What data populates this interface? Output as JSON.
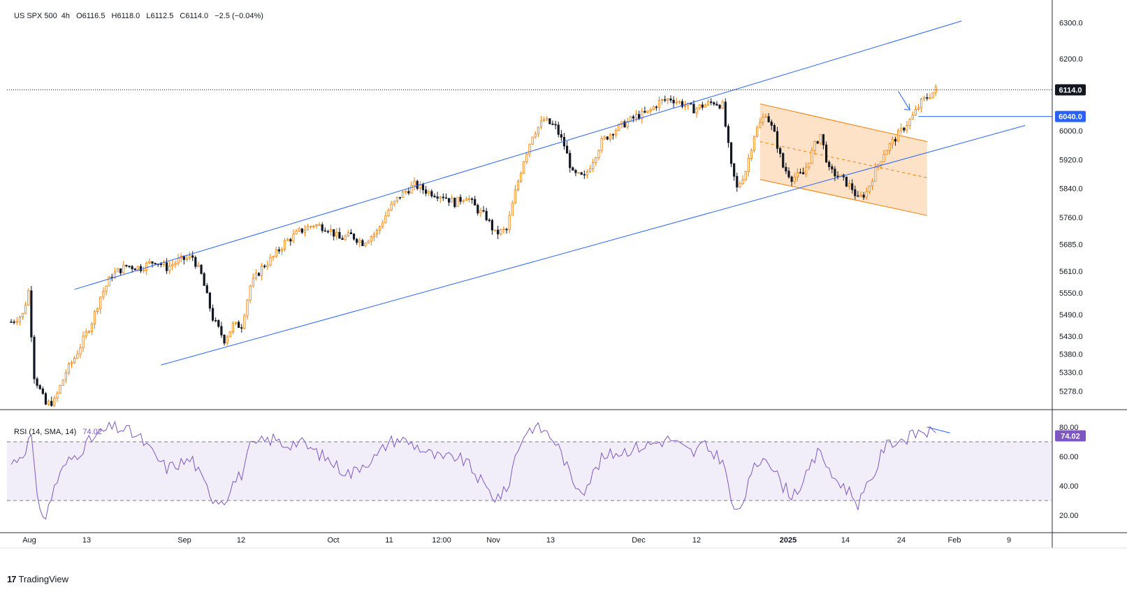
{
  "chart_data": {
    "type": "candlestick",
    "symbol": "US SPX 500",
    "timeframe": "4h",
    "ohlc": {
      "open_label": "O6116.5",
      "high_label": "H6118.0",
      "low_label": "L6112.5",
      "close_label": "C6114.0",
      "change_label": "−2.5 (−0.04%)"
    },
    "price_axis": {
      "min": 5230,
      "max": 6340,
      "ticks": [
        "6300.0",
        "6200.0",
        "6114.0",
        "6040.0",
        "6000.0",
        "5920.0",
        "5840.0",
        "5760.0",
        "5685.0",
        "5610.0",
        "5550.0",
        "5490.0",
        "5430.0",
        "5380.0",
        "5330.0",
        "5278.0"
      ],
      "tick_values": [
        6300,
        6200,
        6114,
        6040,
        6000,
        5920,
        5840,
        5760,
        5685,
        5610,
        5550,
        5490,
        5430,
        5380,
        5330,
        5278
      ]
    },
    "last_price_label": "6114.0",
    "last_price": 6114,
    "level_label": "6040.0",
    "level_price": 6040,
    "time_axis": {
      "labels": [
        "Aug",
        "13",
        "Sep",
        "12",
        "Oct",
        "11",
        "12:00",
        "Nov",
        "13",
        "Dec",
        "12",
        "2025",
        "14",
        "24",
        "Feb",
        "9"
      ],
      "bold": [
        "2025"
      ]
    },
    "price_path": [
      [
        0,
        5470
      ],
      [
        4,
        5490
      ],
      [
        6,
        5555
      ],
      [
        8,
        5320
      ],
      [
        12,
        5240
      ],
      [
        15,
        5250
      ],
      [
        19,
        5330
      ],
      [
        22,
        5370
      ],
      [
        25,
        5420
      ],
      [
        28,
        5470
      ],
      [
        31,
        5540
      ],
      [
        35,
        5600
      ],
      [
        40,
        5625
      ],
      [
        45,
        5620
      ],
      [
        50,
        5640
      ],
      [
        54,
        5620
      ],
      [
        58,
        5640
      ],
      [
        63,
        5650
      ],
      [
        66,
        5600
      ],
      [
        70,
        5480
      ],
      [
        74,
        5420
      ],
      [
        77,
        5460
      ],
      [
        80,
        5460
      ],
      [
        83,
        5570
      ],
      [
        87,
        5620
      ],
      [
        91,
        5650
      ],
      [
        95,
        5690
      ],
      [
        100,
        5720
      ],
      [
        105,
        5740
      ],
      [
        110,
        5730
      ],
      [
        114,
        5700
      ],
      [
        118,
        5710
      ],
      [
        122,
        5690
      ],
      [
        127,
        5720
      ],
      [
        131,
        5780
      ],
      [
        135,
        5820
      ],
      [
        140,
        5850
      ],
      [
        145,
        5830
      ],
      [
        150,
        5820
      ],
      [
        154,
        5800
      ],
      [
        158,
        5820
      ],
      [
        162,
        5780
      ],
      [
        165,
        5760
      ],
      [
        168,
        5715
      ],
      [
        172,
        5725
      ],
      [
        175,
        5830
      ],
      [
        178,
        5920
      ],
      [
        181,
        5990
      ],
      [
        185,
        6030
      ],
      [
        189,
        6010
      ],
      [
        192,
        5960
      ],
      [
        195,
        5880
      ],
      [
        199,
        5870
      ],
      [
        202,
        5920
      ],
      [
        205,
        5970
      ],
      [
        209,
        6000
      ],
      [
        213,
        6020
      ],
      [
        217,
        6040
      ],
      [
        221,
        6050
      ],
      [
        225,
        6080
      ],
      [
        229,
        6090
      ],
      [
        233,
        6075
      ],
      [
        237,
        6060
      ],
      [
        240,
        6070
      ],
      [
        244,
        6080
      ],
      [
        247,
        6070
      ],
      [
        250,
        5900
      ],
      [
        252,
        5840
      ],
      [
        255,
        5890
      ],
      [
        258,
        5990
      ],
      [
        262,
        6050
      ],
      [
        265,
        5990
      ],
      [
        268,
        5900
      ],
      [
        271,
        5870
      ],
      [
        275,
        5880
      ],
      [
        279,
        5960
      ],
      [
        281,
        5990
      ],
      [
        284,
        5890
      ],
      [
        288,
        5870
      ],
      [
        292,
        5840
      ],
      [
        294,
        5810
      ],
      [
        297,
        5830
      ],
      [
        300,
        5890
      ],
      [
        303,
        5940
      ],
      [
        306,
        5970
      ],
      [
        310,
        6010
      ],
      [
        313,
        6040
      ],
      [
        316,
        6080
      ],
      [
        319,
        6100
      ],
      [
        321,
        6114
      ]
    ],
    "trendlines": [
      {
        "name": "upper-channel",
        "p1": [
          22,
          5560
        ],
        "p2": [
          330,
          6305
        ]
      },
      {
        "name": "lower-channel",
        "p1": [
          52,
          5350
        ],
        "p2": [
          352,
          6015
        ]
      }
    ],
    "descending_channel": {
      "top": {
        "p1": [
          260,
          6075
        ],
        "p2": [
          318,
          5970
        ]
      },
      "mid": {
        "p1": [
          260,
          5970
        ],
        "p2": [
          318,
          5870
        ]
      },
      "bottom": {
        "p1": [
          260,
          5865
        ],
        "p2": [
          318,
          5765
        ]
      }
    },
    "rsi": {
      "label": "RSI (14, SMA, 14)",
      "value_label": "74.02",
      "value": 74.02,
      "min": 10,
      "max": 90,
      "upper_band": 70,
      "lower_band": 30,
      "ticks": [
        "80.00",
        "60.00",
        "40.00",
        "20.00"
      ],
      "tick_values": [
        80,
        60,
        40,
        20
      ],
      "path": [
        [
          0,
          55
        ],
        [
          4,
          62
        ],
        [
          7,
          74
        ],
        [
          9,
          30
        ],
        [
          12,
          18
        ],
        [
          15,
          40
        ],
        [
          19,
          55
        ],
        [
          23,
          62
        ],
        [
          27,
          70
        ],
        [
          31,
          76
        ],
        [
          35,
          80
        ],
        [
          40,
          78
        ],
        [
          45,
          72
        ],
        [
          50,
          60
        ],
        [
          54,
          52
        ],
        [
          58,
          55
        ],
        [
          63,
          58
        ],
        [
          66,
          45
        ],
        [
          70,
          32
        ],
        [
          74,
          30
        ],
        [
          77,
          42
        ],
        [
          80,
          48
        ],
        [
          83,
          66
        ],
        [
          87,
          70
        ],
        [
          91,
          72
        ],
        [
          95,
          68
        ],
        [
          100,
          70
        ],
        [
          105,
          64
        ],
        [
          110,
          58
        ],
        [
          114,
          52
        ],
        [
          118,
          48
        ],
        [
          122,
          55
        ],
        [
          127,
          60
        ],
        [
          131,
          70
        ],
        [
          135,
          72
        ],
        [
          140,
          68
        ],
        [
          145,
          62
        ],
        [
          150,
          58
        ],
        [
          154,
          60
        ],
        [
          158,
          56
        ],
        [
          162,
          46
        ],
        [
          165,
          38
        ],
        [
          168,
          32
        ],
        [
          172,
          36
        ],
        [
          175,
          60
        ],
        [
          178,
          75
        ],
        [
          181,
          80
        ],
        [
          185,
          78
        ],
        [
          189,
          70
        ],
        [
          192,
          58
        ],
        [
          195,
          42
        ],
        [
          199,
          38
        ],
        [
          202,
          48
        ],
        [
          205,
          58
        ],
        [
          209,
          62
        ],
        [
          213,
          64
        ],
        [
          217,
          66
        ],
        [
          221,
          68
        ],
        [
          225,
          70
        ],
        [
          229,
          72
        ],
        [
          233,
          66
        ],
        [
          237,
          62
        ],
        [
          240,
          68
        ],
        [
          244,
          62
        ],
        [
          247,
          58
        ],
        [
          250,
          30
        ],
        [
          252,
          20
        ],
        [
          255,
          35
        ],
        [
          258,
          52
        ],
        [
          262,
          62
        ],
        [
          265,
          50
        ],
        [
          268,
          40
        ],
        [
          271,
          34
        ],
        [
          275,
          42
        ],
        [
          279,
          58
        ],
        [
          281,
          66
        ],
        [
          284,
          48
        ],
        [
          288,
          42
        ],
        [
          292,
          34
        ],
        [
          294,
          28
        ],
        [
          297,
          38
        ],
        [
          300,
          50
        ],
        [
          303,
          66
        ],
        [
          306,
          70
        ],
        [
          310,
          72
        ],
        [
          313,
          74
        ],
        [
          316,
          78
        ],
        [
          319,
          76
        ],
        [
          321,
          74
        ]
      ],
      "divergence_line": {
        "p1": [
          318,
          80
        ],
        "p2": [
          326,
          76
        ]
      }
    },
    "brand": "TradingView"
  }
}
